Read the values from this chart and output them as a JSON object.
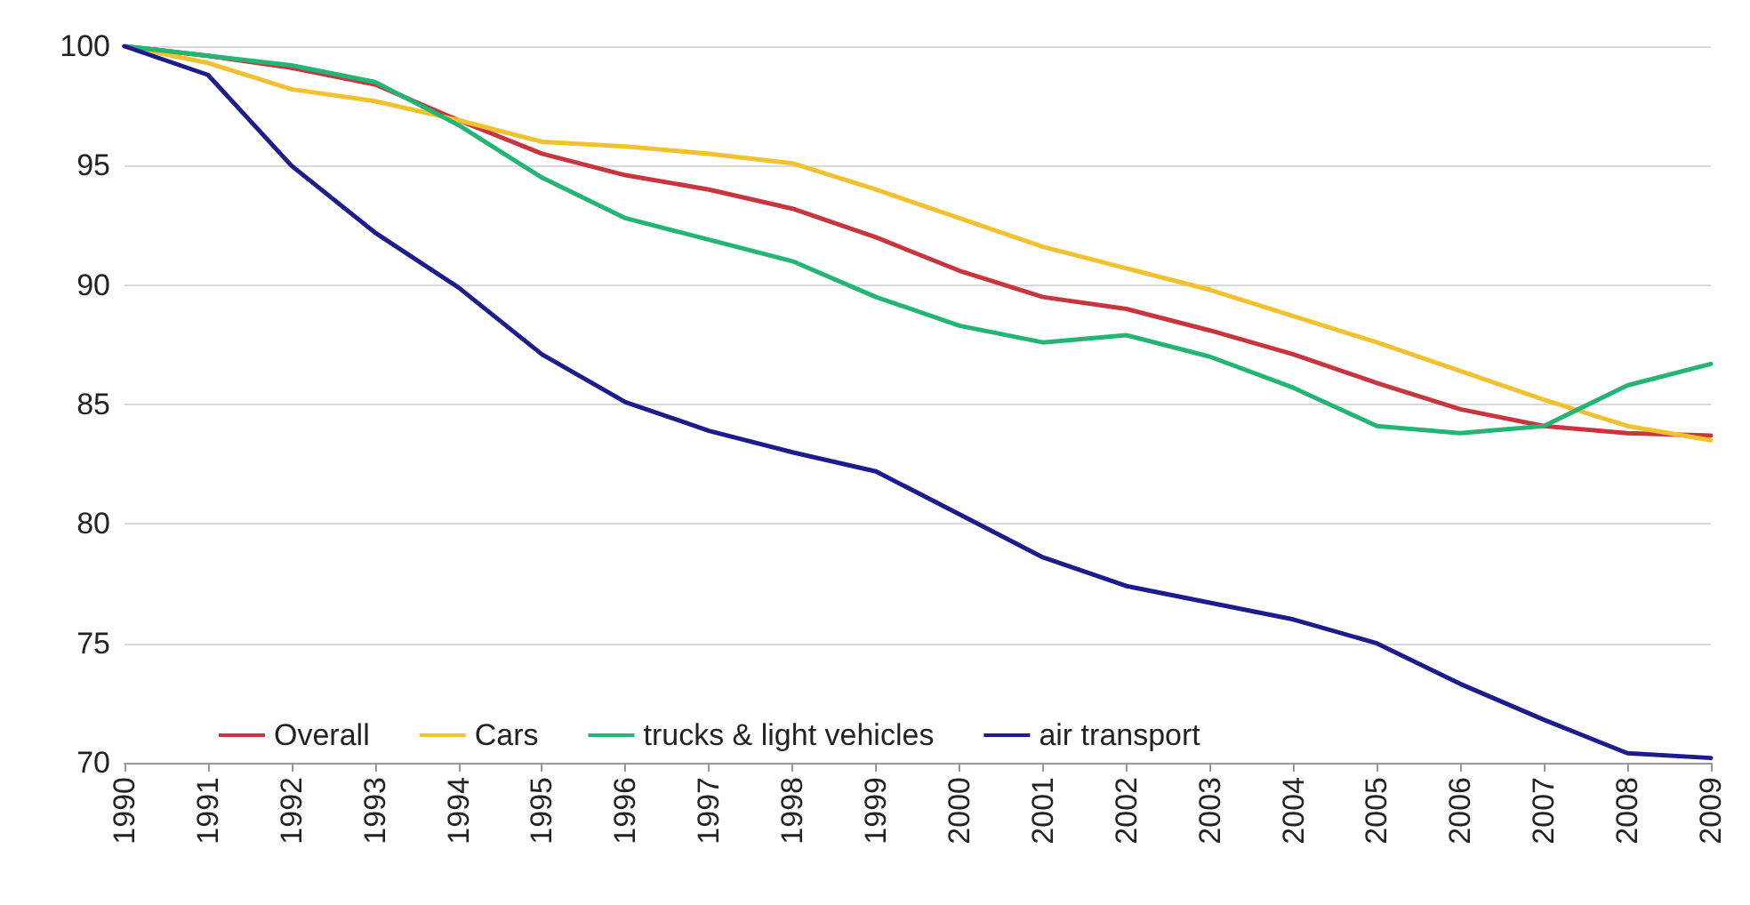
{
  "chart_data": {
    "type": "line",
    "categories": [
      "1990",
      "1991",
      "1992",
      "1993",
      "1994",
      "1995",
      "1996",
      "1997",
      "1998",
      "1999",
      "2000",
      "2001",
      "2002",
      "2003",
      "2004",
      "2005",
      "2006",
      "2007",
      "2008",
      "2009"
    ],
    "series": [
      {
        "name": "Overall",
        "color": "#c9353f",
        "values": [
          100,
          99.6,
          99.1,
          98.4,
          96.9,
          95.5,
          94.6,
          94,
          93.2,
          92,
          90.6,
          89.5,
          89,
          88.1,
          87.1,
          85.9,
          84.8,
          84.1,
          83.8,
          83.7
        ]
      },
      {
        "name": "Cars",
        "color": "#f2c12e",
        "values": [
          100,
          99.3,
          98.2,
          97.7,
          96.9,
          96,
          95.8,
          95.5,
          95.1,
          94,
          92.8,
          91.6,
          90.7,
          89.8,
          88.7,
          87.6,
          86.4,
          85.2,
          84.1,
          83.5
        ]
      },
      {
        "name": "trucks & light vehicles",
        "color": "#23b574",
        "values": [
          100,
          99.6,
          99.2,
          98.5,
          96.7,
          94.5,
          92.8,
          91.9,
          91,
          89.5,
          88.3,
          87.6,
          87.9,
          87,
          85.7,
          84.1,
          83.8,
          84.1,
          85.8,
          86.7
        ]
      },
      {
        "name": "air transport",
        "color": "#1c1c8c",
        "values": [
          100,
          98.8,
          95,
          92.2,
          89.9,
          87.1,
          85.1,
          83.9,
          83,
          82.2,
          80.4,
          78.6,
          77.4,
          76.7,
          76,
          75,
          73.3,
          71.8,
          70.4,
          70.2
        ]
      }
    ],
    "ylim": [
      70,
      100
    ],
    "yticks": [
      70,
      75,
      80,
      85,
      90,
      95,
      100
    ],
    "grid": "y",
    "legend": "bottom left",
    "marker": "none",
    "line_style": "solid"
  }
}
